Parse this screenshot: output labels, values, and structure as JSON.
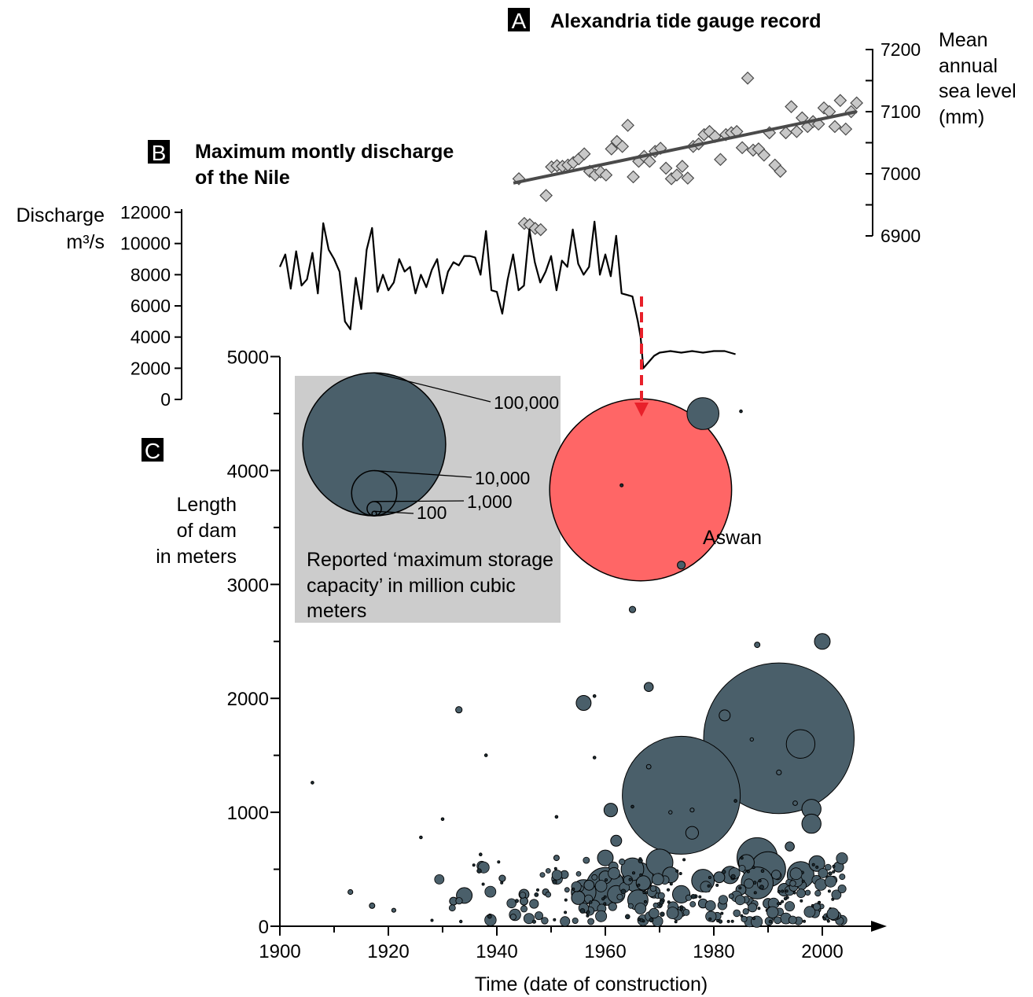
{
  "panel_a": {
    "letter": "A",
    "title": "Alexandria tide gauge record",
    "axis_label_lines": [
      "Mean",
      "annual",
      "sea level",
      "(mm)"
    ],
    "yticks": [
      6900,
      7000,
      7100,
      7200
    ],
    "marker_color": "#c8c8c8",
    "trend_color": "#4a4a4a"
  },
  "panel_b": {
    "letter": "B",
    "title_lines": [
      "Maximum montly discharge",
      "of the Nile"
    ],
    "axis_label_lines": [
      "Discharge",
      "m³/s"
    ],
    "yticks": [
      0,
      2000,
      4000,
      6000,
      8000,
      10000,
      12000
    ]
  },
  "panel_c": {
    "letter": "C",
    "ylabel_lines": [
      "Length",
      "of dam",
      "in meters"
    ],
    "yticks": [
      0,
      1000,
      2000,
      3000,
      4000,
      5000
    ],
    "xticks": [
      1900,
      1920,
      1940,
      1960,
      1980,
      2000
    ],
    "xlabel": "Time (date of construction)",
    "bubble_color": "#4a5f6a",
    "aswan_color": "#ff6666",
    "arrow_color": "#e8202a",
    "aswan_label": "Aswan",
    "legend": {
      "box_color": "#cccccc",
      "size_labels": [
        "100,000",
        "10,000",
        "1,000",
        "100"
      ],
      "size_values": [
        100000,
        10000,
        1000,
        100
      ],
      "caption_lines": [
        "Reported ‘maximum storage",
        "capacity’ in million cubic",
        "meters"
      ]
    }
  },
  "chart_data": [
    {
      "type": "scatter",
      "title": "Alexandria tide gauge record",
      "ylabel": "Mean annual sea level (mm)",
      "ylim": [
        6900,
        7200
      ],
      "x": [
        1944,
        1945,
        1946,
        1947,
        1948,
        1949,
        1950,
        1951,
        1952,
        1953,
        1954,
        1955,
        1956,
        1957,
        1958,
        1959,
        1960,
        1961,
        1962,
        1963,
        1964,
        1965,
        1966,
        1967,
        1968,
        1969,
        1970,
        1971,
        1972,
        1973,
        1974,
        1975,
        1976,
        1977,
        1978,
        1979,
        1980,
        1981,
        1982,
        1983,
        1984,
        1985,
        1986,
        1987,
        1988,
        1989,
        1990,
        1991,
        1992,
        1993,
        1994,
        1995,
        1996,
        1997,
        1998,
        1999,
        2000,
        2001,
        2002,
        2003,
        2004,
        2005,
        2006
      ],
      "y": [
        6992,
        6920,
        6918,
        6912,
        6910,
        6965,
        7011,
        7013,
        7012,
        7014,
        7018,
        7024,
        7032,
        7004,
        6998,
        7003,
        6998,
        7040,
        7052,
        7044,
        7078,
        6995,
        7020,
        7028,
        7020,
        7036,
        7041,
        7009,
        6992,
        6998,
        7012,
        6993,
        7044,
        7048,
        7063,
        7068,
        7060,
        7023,
        7063,
        7066,
        7068,
        7042,
        7154,
        7038,
        7040,
        7030,
        7066,
        7014,
        7004,
        7066,
        7108,
        7068,
        7090,
        7076,
        7084,
        7080,
        7106,
        7100,
        7076,
        7118,
        7072,
        7100,
        7114
      ],
      "trend": {
        "x": [
          1943,
          2006
        ],
        "y": [
          6985,
          7100
        ]
      }
    },
    {
      "type": "line",
      "title": "Maximum montly discharge of the Nile",
      "ylabel": "Discharge m³/s",
      "ylim": [
        0,
        12000
      ],
      "x": [
        1900,
        1901,
        1902,
        1903,
        1904,
        1905,
        1906,
        1907,
        1908,
        1909,
        1910,
        1911,
        1912,
        1913,
        1914,
        1915,
        1916,
        1917,
        1918,
        1919,
        1920,
        1921,
        1922,
        1923,
        1924,
        1925,
        1926,
        1927,
        1928,
        1929,
        1930,
        1931,
        1932,
        1933,
        1934,
        1935,
        1936,
        1937,
        1938,
        1939,
        1940,
        1941,
        1942,
        1943,
        1944,
        1945,
        1946,
        1947,
        1948,
        1949,
        1950,
        1951,
        1952,
        1953,
        1954,
        1955,
        1956,
        1957,
        1958,
        1959,
        1960,
        1961,
        1962,
        1963,
        1964,
        1965,
        1966,
        1966.5,
        1967,
        1968,
        1969,
        1970,
        1972,
        1974,
        1976,
        1978,
        1980,
        1982,
        1984
      ],
      "y": [
        8500,
        9300,
        7100,
        9500,
        7300,
        7700,
        9400,
        6800,
        11300,
        9600,
        9000,
        8200,
        5000,
        4500,
        7800,
        5800,
        9600,
        11000,
        6900,
        8000,
        7000,
        7500,
        9000,
        8200,
        8500,
        6800,
        8000,
        7200,
        8300,
        9000,
        6800,
        8200,
        8800,
        8600,
        9200,
        9200,
        9100,
        8000,
        10800,
        7000,
        6900,
        5500,
        7700,
        9300,
        7000,
        7300,
        10900,
        8800,
        7500,
        8200,
        9200,
        7000,
        8900,
        8500,
        10900,
        8700,
        8000,
        8500,
        11400,
        8000,
        9300,
        7900,
        10500,
        6800,
        6700,
        6600,
        5000,
        4000,
        2000,
        2400,
        2800,
        3000,
        3100,
        3000,
        3100,
        3000,
        3100,
        3100,
        2900
      ]
    },
    {
      "type": "scatter",
      "xlabel": "Time (date of construction)",
      "ylabel": "Length of dam in meters",
      "xlim": [
        1900,
        2010
      ],
      "ylim": [
        0,
        5000
      ],
      "size_label": "Reported ‘maximum storage capacity’ in million cubic meters",
      "points": [
        {
          "name": "Aswan",
          "year": 1966.5,
          "length": 3830,
          "capacity": 162000
        },
        {
          "year": 1963.0,
          "length": 3870,
          "capacity": 50
        },
        {
          "year": 1978.0,
          "length": 4500,
          "capacity": 5000
        },
        {
          "year": 1985.0,
          "length": 4520,
          "capacity": 12
        },
        {
          "year": 1974.0,
          "length": 3170,
          "capacity": 300
        },
        {
          "year": 1965.0,
          "length": 2780,
          "capacity": 200
        },
        {
          "year": 1988.0,
          "length": 2470,
          "capacity": 150
        },
        {
          "year": 2000.0,
          "length": 2500,
          "capacity": 1200
        },
        {
          "year": 1968.0,
          "length": 2100,
          "capacity": 400
        },
        {
          "year": 1956.0,
          "length": 1960,
          "capacity": 1100
        },
        {
          "year": 1958.0,
          "length": 2020,
          "capacity": 20
        },
        {
          "year": 1933.0,
          "length": 1900,
          "capacity": 200
        },
        {
          "year": 1938.0,
          "length": 1500,
          "capacity": 12
        },
        {
          "year": 1906.0,
          "length": 1260,
          "capacity": 12
        },
        {
          "year": 1982.0,
          "length": 1850,
          "capacity": 600
        },
        {
          "year": 1992.0,
          "length": 1650,
          "capacity": 111000
        },
        {
          "year": 1996.0,
          "length": 1600,
          "capacity": 4000
        },
        {
          "year": 1974.0,
          "length": 1150,
          "capacity": 68000
        },
        {
          "year": 1958.0,
          "length": 1480,
          "capacity": 12
        },
        {
          "year": 1968.0,
          "length": 1400,
          "capacity": 100
        },
        {
          "year": 1987.0,
          "length": 1640,
          "capacity": 60
        },
        {
          "year": 1992.0,
          "length": 1350,
          "capacity": 120
        },
        {
          "year": 1961.0,
          "length": 1020,
          "capacity": 900
        },
        {
          "year": 1976.0,
          "length": 820,
          "capacity": 800
        },
        {
          "year": 1998.0,
          "length": 1030,
          "capacity": 1800
        },
        {
          "year": 1998.0,
          "length": 900,
          "capacity": 1800
        },
        {
          "year": 1995.0,
          "length": 1080,
          "capacity": 100
        },
        {
          "year": 1951.0,
          "length": 960,
          "capacity": 20
        },
        {
          "year": 1930.0,
          "length": 940,
          "capacity": 12
        },
        {
          "year": 1926.0,
          "length": 780,
          "capacity": 12
        },
        {
          "year": 1937.0,
          "length": 630,
          "capacity": 12
        },
        {
          "year": 1960.0,
          "length": 600,
          "capacity": 1200
        },
        {
          "year": 1970.0,
          "length": 560,
          "capacity": 3500
        },
        {
          "year": 1966.0,
          "length": 430,
          "capacity": 4500
        },
        {
          "year": 1960.0,
          "length": 350,
          "capacity": 7000
        },
        {
          "year": 1956.0,
          "length": 300,
          "capacity": 3000
        },
        {
          "year": 1988.0,
          "length": 600,
          "capacity": 8000
        },
        {
          "year": 1990.0,
          "length": 500,
          "capacity": 6000
        },
        {
          "year": 1988.0,
          "length": 380,
          "capacity": 5000
        },
        {
          "year": 1996.0,
          "length": 450,
          "capacity": 3500
        },
        {
          "year": 1999.0,
          "length": 550,
          "capacity": 1200
        },
        {
          "year": 1978.0,
          "length": 400,
          "capacity": 2500
        },
        {
          "year": 1983.0,
          "length": 450,
          "capacity": 1500
        },
        {
          "year": 1974.0,
          "length": 280,
          "capacity": 1500
        },
        {
          "year": 1972.0,
          "length": 450,
          "capacity": 1200
        },
        {
          "year": 1966.0,
          "length": 230,
          "capacity": 2000
        },
        {
          "year": 1962.0,
          "length": 280,
          "capacity": 1500
        },
        {
          "year": 1934.0,
          "length": 270,
          "capacity": 1200
        },
        {
          "year": 1945.0,
          "length": 280,
          "capacity": 500
        },
        {
          "year": 1993.0,
          "length": 320,
          "capacity": 800
        },
        {
          "year": 1986.0,
          "length": 560,
          "capacity": 1200
        },
        {
          "year": 1962.0,
          "length": 750,
          "capacity": 600
        },
        {
          "year": 1981.0,
          "length": 430,
          "capacity": 600
        },
        {
          "year": 1945.0,
          "length": 220,
          "capacity": 300
        },
        {
          "year": 1974.0,
          "length": 130,
          "capacity": 500
        },
        {
          "year": 1999.0,
          "length": 150,
          "capacity": 300
        },
        {
          "year": 1941.0,
          "length": 420,
          "capacity": 200
        },
        {
          "year": 1949.0,
          "length": 300,
          "capacity": 200
        },
        {
          "year": 1917.0,
          "length": 180,
          "capacity": 150
        },
        {
          "year": 1913.0,
          "length": 300,
          "capacity": 120
        },
        {
          "year": 1921.0,
          "length": 140,
          "capacity": 80
        },
        {
          "year": 1932.0,
          "length": 220,
          "capacity": 300
        },
        {
          "year": 1951.0,
          "length": 600,
          "capacity": 150
        },
        {
          "year": 1955.0,
          "length": 250,
          "capacity": 900
        },
        {
          "year": 1958.0,
          "length": 180,
          "capacity": 600
        },
        {
          "year": 1969.0,
          "length": 300,
          "capacity": 700
        },
        {
          "year": 1978.0,
          "length": 200,
          "capacity": 400
        },
        {
          "year": 1990.0,
          "length": 200,
          "capacity": 500
        },
        {
          "year": 2003.0,
          "length": 520,
          "capacity": 500
        },
        {
          "year": 1994.0,
          "length": 700,
          "capacity": 400
        },
        {
          "year": 1965.0,
          "length": 500,
          "capacity": 2500
        },
        {
          "year": 1967.0,
          "length": 380,
          "capacity": 1000
        },
        {
          "year": 1960.0,
          "length": 430,
          "capacity": 800
        },
        {
          "year": 1957.0,
          "length": 360,
          "capacity": 500
        },
        {
          "year": 1985.0,
          "length": 320,
          "capacity": 500
        },
        {
          "year": 1976.0,
          "length": 1020,
          "capacity": 80
        },
        {
          "year": 1972.0,
          "length": 1000,
          "capacity": 60
        },
        {
          "year": 1984.0,
          "length": 1100,
          "capacity": 30
        },
        {
          "year": 1965.0,
          "length": 1050,
          "capacity": 20
        }
      ]
    }
  ]
}
